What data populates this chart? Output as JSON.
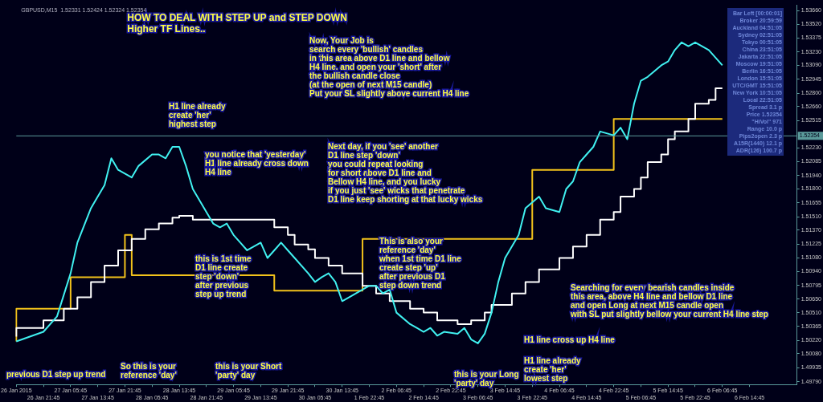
{
  "chart_data": {
    "type": "line",
    "title": "HOW TO DEAL WITH STEP UP and STEP DOWN\nHigher TF Lines..",
    "subtitle": "GBPUSD,M15  1.52331 1.52424 1.52324 1.52354",
    "categories": [
      "26 Jan 2015",
      null,
      null,
      null,
      "26 Jan 21:45",
      null,
      null,
      null,
      "27 Jan 05:45",
      null,
      null,
      null,
      "27 Jan 13:45",
      null,
      null,
      null,
      "27 Jan 21:45",
      null,
      null,
      null,
      "28 Jan 05:45",
      null,
      null,
      null,
      "28 Jan 13:45",
      null,
      null,
      null,
      "28 Jan 21:45",
      null,
      null,
      null,
      "29 Jan 05:45",
      null,
      null,
      null,
      "29 Jan 13:45",
      null,
      null,
      null,
      "29 Jan 21:45",
      null,
      null,
      null,
      "30 Jan 05:45",
      null,
      null,
      null,
      "30 Jan 13:45",
      null,
      null,
      null,
      "1 Feb 22:45",
      null,
      null,
      null,
      "2 Feb 06:45",
      null,
      null,
      null,
      "2 Feb 14:45",
      null,
      null,
      null,
      "2 Feb 22:45",
      null,
      null,
      null,
      "3 Feb 06:45",
      null,
      null,
      null,
      "3 Feb 14:45",
      null,
      null,
      null,
      "3 Feb 22:45",
      null,
      null,
      null,
      "4 Feb 06:45",
      null,
      null,
      null,
      "4 Feb 14:45",
      null,
      null,
      null,
      "4 Feb 22:45",
      null,
      null,
      null,
      "5 Feb 06:45",
      null,
      null,
      null,
      "5 Feb 14:45",
      null,
      null,
      null,
      "5 Feb 22:45",
      null,
      null,
      null,
      "6 Feb 06:45",
      null,
      null,
      null,
      "6 Feb 14:45",
      null,
      null,
      null,
      null,
      null,
      null,
      null
    ],
    "ylim": [
      1.4976,
      1.5372
    ],
    "yticks": [
      {
        "value": 1.5366,
        "label": "1.53660"
      },
      {
        "value": 1.5352,
        "label": "1.53520"
      },
      {
        "value": 1.53375,
        "label": "1.53375"
      },
      {
        "value": 1.5323,
        "label": "1.53230"
      },
      {
        "value": 1.5309,
        "label": "1.53090"
      },
      {
        "value": 1.52945,
        "label": "1.52945"
      },
      {
        "value": 1.528,
        "label": "1.52800"
      },
      {
        "value": 1.5266,
        "label": "1.52660"
      },
      {
        "value": 1.52515,
        "label": "1.52515"
      },
      {
        "value": 1.5223,
        "label": "1.52230"
      },
      {
        "value": 1.52085,
        "label": "1.52085"
      },
      {
        "value": 1.5194,
        "label": "1.51940"
      },
      {
        "value": 1.518,
        "label": "1.51800"
      },
      {
        "value": 1.51655,
        "label": "1.51655"
      },
      {
        "value": 1.5151,
        "label": "1.51510"
      },
      {
        "value": 1.5137,
        "label": "1.51370"
      },
      {
        "value": 1.51225,
        "label": "1.51225"
      },
      {
        "value": 1.5108,
        "label": "1.51080"
      },
      {
        "value": 1.5094,
        "label": "1.50940"
      },
      {
        "value": 1.50795,
        "label": "1.50795"
      },
      {
        "value": 1.5065,
        "label": "1.50650"
      },
      {
        "value": 1.5051,
        "label": "1.50510"
      },
      {
        "value": 1.50365,
        "label": "1.50365"
      },
      {
        "value": 1.5022,
        "label": "1.50220"
      },
      {
        "value": 1.5008,
        "label": "1.50080"
      },
      {
        "value": 1.49935,
        "label": "1.49935"
      },
      {
        "value": 1.4979,
        "label": "1.49790"
      }
    ],
    "grid": false,
    "legend": false,
    "marker": "none",
    "ref_lines": [
      {
        "axis": "y",
        "value": 1.52354,
        "label": "1.52354",
        "color": "#5a9a9a"
      }
    ],
    "series": [
      {
        "type": "line",
        "color": "#40f0f0",
        "values": [
          1.5021,
          null,
          1.5026,
          null,
          1.5031,
          null,
          1.5047,
          null,
          1.5092,
          1.5124,
          null,
          1.516,
          1.5172,
          1.5184,
          1.5212,
          1.52,
          null,
          1.5192,
          1.5204,
          null,
          1.5216,
          1.5216,
          1.5212,
          1.5224,
          1.5224,
          1.5204,
          1.518,
          null,
          1.5156,
          1.5144,
          1.514,
          1.5144,
          1.5132,
          1.5124,
          1.5116,
          null,
          1.5124,
          1.5108,
          1.5116,
          1.5124,
          1.5116,
          1.5108,
          null,
          1.5092,
          1.5083,
          1.5088,
          1.5092,
          1.5083,
          1.5063,
          1.5067,
          null,
          1.5075,
          1.5079,
          1.5079,
          1.5071,
          1.5075,
          1.5051,
          null,
          1.5039,
          1.5035,
          1.5031,
          1.5035,
          1.5027,
          1.5031,
          null,
          1.5029,
          1.5035,
          1.5023,
          1.5019,
          1.5029,
          1.5051,
          1.5083,
          1.5108,
          null,
          1.5132,
          1.516,
          null,
          1.5172,
          1.516,
          null,
          1.5156,
          1.518,
          1.5188,
          1.5208,
          1.5216,
          1.5224,
          1.524,
          null,
          1.5236,
          1.5244,
          1.5232,
          1.5269,
          1.5293,
          1.5297,
          null,
          1.5309,
          1.5313,
          1.5325,
          1.5333,
          1.5329,
          1.5333,
          null,
          1.5325,
          1.5317,
          1.5309,
          null,
          null,
          null,
          null,
          null,
          null,
          null,
          null,
          null,
          null,
          null
        ]
      },
      {
        "type": "step",
        "color": "#ffffff",
        "values": [
          1.5026,
          null,
          null,
          null,
          1.5035,
          null,
          null,
          1.5043,
          null,
          1.5055,
          null,
          1.5067,
          null,
          1.5083,
          null,
          1.51,
          null,
          1.5116,
          null,
          1.5128,
          null,
          1.5138,
          null,
          1.5144,
          1.515,
          null,
          1.5152,
          null,
          null,
          null,
          null,
          null,
          null,
          null,
          null,
          null,
          null,
          null,
          1.5148,
          null,
          1.514,
          1.5132,
          null,
          1.5122,
          1.5117,
          null,
          1.5108,
          null,
          1.51,
          null,
          null,
          1.5092,
          null,
          1.5079,
          null,
          1.5071,
          null,
          null,
          1.5063,
          null,
          1.5055,
          null,
          1.5051,
          null,
          null,
          1.5043,
          null,
          1.5039,
          null,
          1.5043,
          1.5051,
          null,
          null,
          1.5059,
          null,
          1.5071,
          null,
          1.5083,
          null,
          null,
          1.5096,
          null,
          1.5108,
          null,
          1.512,
          null,
          1.5132,
          null,
          1.5148,
          1.5156,
          null,
          1.5172,
          1.518,
          1.5192,
          null,
          1.5208,
          1.5216,
          1.5232,
          null,
          1.524,
          1.5253,
          null,
          1.5269,
          1.5273,
          1.5285,
          null,
          null,
          null,
          null,
          null,
          null,
          null,
          null,
          null,
          null,
          null
        ]
      },
      {
        "type": "step",
        "color": "#f2c21b",
        "values": [
          1.5021,
          null,
          null,
          null,
          null,
          null,
          null,
          null,
          1.5055,
          null,
          null,
          null,
          null,
          null,
          null,
          null,
          1.5088,
          1.5132,
          null,
          null,
          null,
          null,
          null,
          null,
          null,
          null,
          null,
          null,
          null,
          null,
          null,
          null,
          null,
          null,
          null,
          null,
          null,
          null,
          1.509,
          null,
          null,
          null,
          null,
          null,
          null,
          null,
          null,
          null,
          null,
          null,
          null,
          1.5074,
          null,
          null,
          null,
          null,
          null,
          null,
          null,
          null,
          null,
          null,
          null,
          null,
          null,
          null,
          null,
          null,
          null,
          null,
          null,
          null,
          null,
          null,
          null,
          null,
          1.5128,
          null,
          null,
          null,
          null,
          null,
          null,
          null,
          null,
          null,
          null,
          null,
          1.52,
          null,
          null,
          null,
          null,
          null,
          null,
          null,
          null,
          null,
          null,
          1.5253,
          null,
          null,
          null,
          null,
          1.5253,
          null,
          null,
          null,
          null,
          null,
          null,
          null,
          null,
          null,
          null,
          null
        ]
      }
    ],
    "annotations": [
      "H1 line already\ncreate 'her'\nhighest step",
      "you notice that 'yesterday'\nH1 line already cross down\nH4 line",
      "Now, Your Job is\nsearch every 'bullish' candles\nin this area above D1 line and bellow\nH4 line. and open your 'short' after\nthe bullish candle close\n(at the open of next M15 candle)\nPut your SL slightly above current H4 line",
      "Next day, if you 'see' another\nD1 line step 'down'\nyou could repeat looking\nfor short above D1 line and\nBellow H4 line, and you lucky\nif you just 'see' wicks that penetrate\nD1 line keep shorting at that lucky wicks",
      "This is also your\nreference 'day'\nwhen 1st time D1 line\ncreate step 'up'\nafter previous D1\nstep down trend",
      "this is 1st time\nD1 line create\nstep 'down'\nafter previous\nstep up trend",
      "previous D1 step up trend",
      "So this is your\nreference 'day'",
      "this is your Short\n'party' day",
      "this is your Long\n'party' day",
      "Searching for every bearish candles inside\nthis area, above H4 line and bellow D1 line\nand open Long at next M15 candle open\nwith SL put slightly bellow your current H4 line step",
      "H1 line cross up H4 line",
      "H1 line already\ncreate 'her'\nlowest step",
      "Bar Left [00:00:01]",
      "Broker 20:59:59",
      "Auckland 04:51:05",
      "Sydney 02:51:05",
      "Tokyo 00:51:05",
      "China 23:51:05",
      "Jakarta 22:51:05",
      "Moscow 19:51:05",
      "Berlin 16:51:05",
      "London 15:51:05",
      "UTC/GMT 15:51:05",
      "New York 10:51:05",
      "Local 22:51:05",
      "Spread 3.1 p",
      "Price 1.52354",
      "\"HiVol\" 971",
      "Range 10.0 p",
      "Pips2open 2.3 p",
      "A15R(1440) 12.1 p",
      "ADR(126) 100.7 p"
    ]
  }
}
